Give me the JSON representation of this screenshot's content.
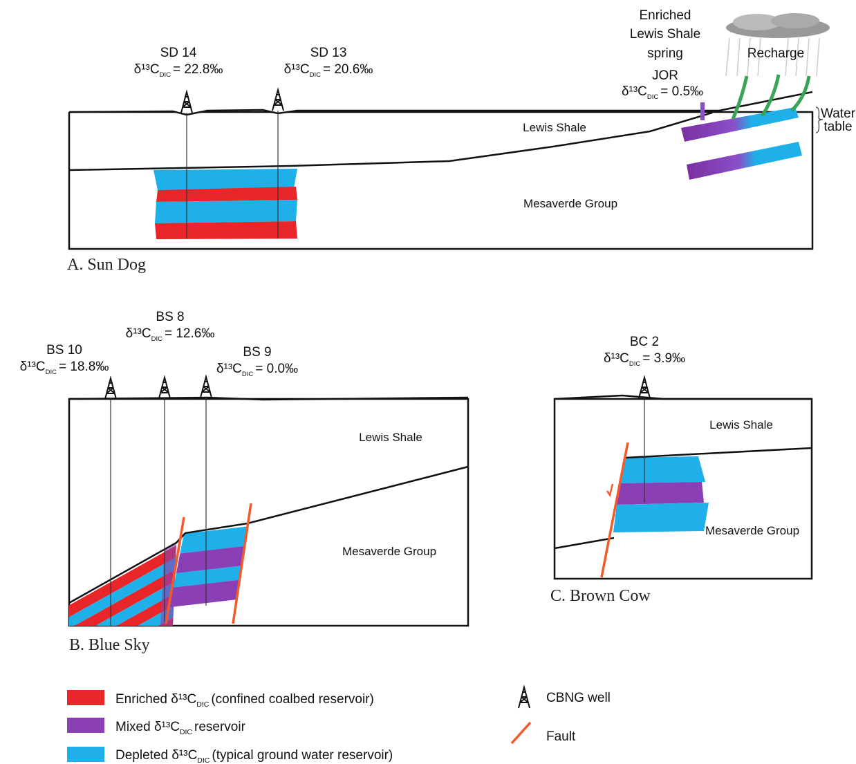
{
  "panels": [
    {
      "label": "A. Sun Dog",
      "layers": [
        "Lewis Shale",
        "Mesaverde Group"
      ],
      "wells": [
        {
          "name": "SD 14",
          "isotope": "δ¹³C",
          "subscript": "DIC",
          "value": "= 22.8‰"
        },
        {
          "name": "SD 13",
          "isotope": "δ¹³C",
          "subscript": "DIC",
          "value": "= 20.6‰"
        }
      ],
      "spring": {
        "lines": [
          "Enriched",
          "Lewis Shale",
          "spring"
        ],
        "name": "JOR",
        "isotope": "δ¹³C",
        "subscript": "DIC",
        "value": "= 0.5‰"
      },
      "recharge": "Recharge",
      "water_table": [
        "Water",
        "table"
      ]
    },
    {
      "label": "B. Blue Sky",
      "layers": [
        "Lewis Shale",
        "Mesaverde Group"
      ],
      "wells": [
        {
          "name": "BS 10",
          "isotope": "δ¹³C",
          "subscript": "DIC",
          "value": "= 18.8‰"
        },
        {
          "name": "BS 8",
          "isotope": "δ¹³C",
          "subscript": "DIC",
          "value": "= 12.6‰"
        },
        {
          "name": "BS 9",
          "isotope": "δ¹³C",
          "subscript": "DIC",
          "value": "= 0.0‰"
        }
      ]
    },
    {
      "label": "C. Brown Cow",
      "layers": [
        "Lewis Shale",
        "Mesaverde Group"
      ],
      "wells": [
        {
          "name": "BC 2",
          "isotope": "δ¹³C",
          "subscript": "DIC",
          "value": "= 3.9‰"
        }
      ]
    }
  ],
  "legend": [
    {
      "start": "Enriched δ¹³C",
      "subscript": "DIC",
      "end": "(confined coalbed reservoir)"
    },
    {
      "start": "Mixed δ¹³C",
      "subscript": "DIC",
      "end": "reservoir"
    },
    {
      "start": "Depleted δ¹³C",
      "subscript": "DIC",
      "end": "(typical ground water reservoir)"
    }
  ],
  "symbols": {
    "well": "CBNG well",
    "fault": "Fault"
  }
}
